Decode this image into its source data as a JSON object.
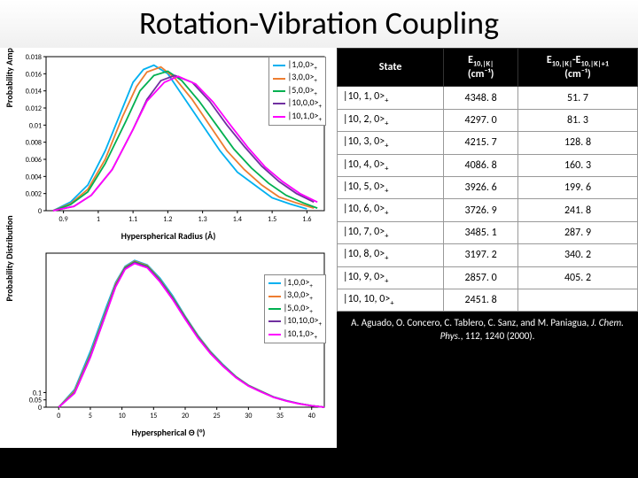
{
  "title": "Rotation-Vibration Coupling",
  "chart_top": {
    "ylabel": "Probability Amplitude",
    "xlabel": "Hyperspherical Radius (Å)",
    "xlim": [
      0.85,
      1.65
    ],
    "ylim": [
      0,
      0.018
    ],
    "xticks": [
      0.9,
      1.0,
      1.1,
      1.2,
      1.3,
      1.4,
      1.5,
      1.6
    ],
    "yticks": [
      0,
      0.002,
      0.004,
      0.006,
      0.008,
      0.01,
      0.012,
      0.014,
      0.016,
      0.018
    ],
    "background_color": "#ffffff",
    "grid_color": "#cccccc",
    "line_width": 1.8,
    "legend_pos": "top-right",
    "series": [
      {
        "label": "|1,0,0>",
        "sub": "+",
        "color": "#00b0f0",
        "points": [
          [
            0.87,
            0
          ],
          [
            0.92,
            0.001
          ],
          [
            0.97,
            0.003
          ],
          [
            1.02,
            0.007
          ],
          [
            1.07,
            0.012
          ],
          [
            1.1,
            0.015
          ],
          [
            1.13,
            0.0165
          ],
          [
            1.16,
            0.017
          ],
          [
            1.2,
            0.016
          ],
          [
            1.25,
            0.013
          ],
          [
            1.3,
            0.01
          ],
          [
            1.35,
            0.007
          ],
          [
            1.4,
            0.0045
          ],
          [
            1.45,
            0.003
          ],
          [
            1.5,
            0.0015
          ],
          [
            1.55,
            0.0008
          ],
          [
            1.6,
            0.0002
          ]
        ]
      },
      {
        "label": "|3,0,0>",
        "sub": "+",
        "color": "#ed7d31",
        "points": [
          [
            0.87,
            0
          ],
          [
            0.92,
            0.0008
          ],
          [
            0.97,
            0.0025
          ],
          [
            1.02,
            0.006
          ],
          [
            1.07,
            0.011
          ],
          [
            1.11,
            0.0145
          ],
          [
            1.14,
            0.0162
          ],
          [
            1.18,
            0.0168
          ],
          [
            1.22,
            0.0155
          ],
          [
            1.27,
            0.013
          ],
          [
            1.32,
            0.01
          ],
          [
            1.37,
            0.007
          ],
          [
            1.42,
            0.0048
          ],
          [
            1.47,
            0.003
          ],
          [
            1.52,
            0.0016
          ],
          [
            1.57,
            0.0009
          ],
          [
            1.62,
            0.0003
          ]
        ]
      },
      {
        "label": "|5,0,0>",
        "sub": "+",
        "color": "#00b050",
        "points": [
          [
            0.87,
            0
          ],
          [
            0.92,
            0.0007
          ],
          [
            0.97,
            0.0022
          ],
          [
            1.02,
            0.0055
          ],
          [
            1.08,
            0.0105
          ],
          [
            1.12,
            0.014
          ],
          [
            1.16,
            0.0158
          ],
          [
            1.2,
            0.0163
          ],
          [
            1.24,
            0.0152
          ],
          [
            1.29,
            0.0128
          ],
          [
            1.34,
            0.01
          ],
          [
            1.39,
            0.0072
          ],
          [
            1.44,
            0.005
          ],
          [
            1.49,
            0.0032
          ],
          [
            1.54,
            0.0018
          ],
          [
            1.59,
            0.0009
          ],
          [
            1.63,
            0.0003
          ]
        ]
      },
      {
        "label": "|10,0,0>",
        "sub": "+",
        "color": "#7030a0",
        "points": [
          [
            0.87,
            0
          ],
          [
            0.93,
            0.0005
          ],
          [
            0.98,
            0.0018
          ],
          [
            1.04,
            0.0048
          ],
          [
            1.1,
            0.0095
          ],
          [
            1.14,
            0.013
          ],
          [
            1.18,
            0.0152
          ],
          [
            1.22,
            0.0158
          ],
          [
            1.27,
            0.015
          ],
          [
            1.32,
            0.0128
          ],
          [
            1.37,
            0.01
          ],
          [
            1.42,
            0.0075
          ],
          [
            1.47,
            0.0052
          ],
          [
            1.52,
            0.0034
          ],
          [
            1.57,
            0.002
          ],
          [
            1.62,
            0.001
          ]
        ]
      },
      {
        "label": "|10,1,0>",
        "sub": "+",
        "color": "#ff00ff",
        "points": [
          [
            0.87,
            0
          ],
          [
            0.93,
            0.0005
          ],
          [
            0.98,
            0.0018
          ],
          [
            1.04,
            0.0048
          ],
          [
            1.1,
            0.0095
          ],
          [
            1.14,
            0.0128
          ],
          [
            1.19,
            0.015
          ],
          [
            1.23,
            0.0157
          ],
          [
            1.28,
            0.0148
          ],
          [
            1.33,
            0.0127
          ],
          [
            1.38,
            0.01
          ],
          [
            1.43,
            0.0074
          ],
          [
            1.48,
            0.0051
          ],
          [
            1.53,
            0.0034
          ],
          [
            1.58,
            0.002
          ],
          [
            1.63,
            0.001
          ]
        ]
      }
    ]
  },
  "chart_bottom": {
    "ylabel": "Probability Distribution",
    "xlabel": "Hyperspherical Θ (°)",
    "xlim": [
      -2,
      42
    ],
    "ylim": [
      0,
      1.05
    ],
    "xticks": [
      0,
      5,
      10,
      15,
      20,
      25,
      30,
      35,
      40
    ],
    "yticks": [
      0.0,
      0.05,
      0.1
    ],
    "ytick_labels": [
      "0",
      "0.05",
      "0.1"
    ],
    "background_color": "#ffffff",
    "line_width": 1.8,
    "legend_pos": "right-upper",
    "series": [
      {
        "label": "|1,0,0>",
        "sub": "+",
        "color": "#00b0f0",
        "points": [
          [
            0,
            0
          ],
          [
            2.5,
            0.12
          ],
          [
            5,
            0.38
          ],
          [
            7.5,
            0.68
          ],
          [
            9,
            0.85
          ],
          [
            10.5,
            0.96
          ],
          [
            12,
            1.0
          ],
          [
            14,
            0.97
          ],
          [
            16,
            0.88
          ],
          [
            18,
            0.76
          ],
          [
            20,
            0.62
          ],
          [
            22,
            0.49
          ],
          [
            24,
            0.38
          ],
          [
            26,
            0.29
          ],
          [
            28,
            0.21
          ],
          [
            30,
            0.15
          ],
          [
            32,
            0.11
          ],
          [
            34,
            0.07
          ],
          [
            36,
            0.045
          ],
          [
            38,
            0.025
          ],
          [
            40,
            0.01
          ],
          [
            42,
            0
          ]
        ]
      },
      {
        "label": "|3,0,0>",
        "sub": "+",
        "color": "#ed7d31",
        "points": [
          [
            0,
            0
          ],
          [
            2.5,
            0.11
          ],
          [
            5,
            0.36
          ],
          [
            7.5,
            0.66
          ],
          [
            9,
            0.84
          ],
          [
            10.5,
            0.955
          ],
          [
            12,
            0.995
          ],
          [
            14,
            0.965
          ],
          [
            16,
            0.87
          ],
          [
            18,
            0.75
          ],
          [
            20,
            0.615
          ],
          [
            22,
            0.485
          ],
          [
            24,
            0.375
          ],
          [
            26,
            0.285
          ],
          [
            28,
            0.208
          ],
          [
            30,
            0.148
          ],
          [
            32,
            0.108
          ],
          [
            34,
            0.069
          ],
          [
            36,
            0.044
          ],
          [
            38,
            0.024
          ],
          [
            40,
            0.01
          ],
          [
            42,
            0
          ]
        ]
      },
      {
        "label": "|5,0,0>",
        "sub": "+",
        "color": "#00b050",
        "points": [
          [
            0,
            0
          ],
          [
            2.5,
            0.1
          ],
          [
            5,
            0.35
          ],
          [
            7.5,
            0.65
          ],
          [
            9,
            0.83
          ],
          [
            10.5,
            0.95
          ],
          [
            12,
            0.99
          ],
          [
            14,
            0.96
          ],
          [
            16,
            0.865
          ],
          [
            18,
            0.745
          ],
          [
            20,
            0.61
          ],
          [
            22,
            0.48
          ],
          [
            24,
            0.37
          ],
          [
            26,
            0.282
          ],
          [
            28,
            0.206
          ],
          [
            30,
            0.146
          ],
          [
            32,
            0.106
          ],
          [
            34,
            0.068
          ],
          [
            36,
            0.043
          ],
          [
            38,
            0.024
          ],
          [
            40,
            0.01
          ],
          [
            42,
            0
          ]
        ]
      },
      {
        "label": "|10,10,0>",
        "sub": "+",
        "color": "#7030a0",
        "points": [
          [
            0,
            0
          ],
          [
            2.5,
            0.095
          ],
          [
            5,
            0.34
          ],
          [
            7.5,
            0.64
          ],
          [
            9,
            0.825
          ],
          [
            10.5,
            0.945
          ],
          [
            12,
            0.985
          ],
          [
            14,
            0.955
          ],
          [
            16,
            0.86
          ],
          [
            18,
            0.74
          ],
          [
            20,
            0.605
          ],
          [
            22,
            0.476
          ],
          [
            24,
            0.367
          ],
          [
            26,
            0.28
          ],
          [
            28,
            0.204
          ],
          [
            30,
            0.145
          ],
          [
            32,
            0.105
          ],
          [
            34,
            0.067
          ],
          [
            36,
            0.043
          ],
          [
            38,
            0.024
          ],
          [
            40,
            0.01
          ],
          [
            42,
            0
          ]
        ]
      },
      {
        "label": "|10,1,0>",
        "sub": "+",
        "color": "#ff00ff",
        "points": [
          [
            0,
            0
          ],
          [
            2.5,
            0.095
          ],
          [
            5,
            0.34
          ],
          [
            7.5,
            0.64
          ],
          [
            9,
            0.82
          ],
          [
            10.5,
            0.94
          ],
          [
            12,
            0.98
          ],
          [
            14,
            0.95
          ],
          [
            16,
            0.855
          ],
          [
            18,
            0.735
          ],
          [
            20,
            0.6
          ],
          [
            22,
            0.472
          ],
          [
            24,
            0.365
          ],
          [
            26,
            0.278
          ],
          [
            28,
            0.202
          ],
          [
            30,
            0.144
          ],
          [
            32,
            0.104
          ],
          [
            34,
            0.067
          ],
          [
            36,
            0.042
          ],
          [
            38,
            0.023
          ],
          [
            40,
            0.01
          ],
          [
            42,
            0
          ]
        ]
      }
    ]
  },
  "table": {
    "headers": {
      "c1": "State",
      "c2_main": "E",
      "c2_sub": "10,|K|",
      "c2_unit": "(cm⁻¹)",
      "c3_main1": "E",
      "c3_sub1": "10,|K|",
      "c3_mid": "-E",
      "c3_sub2": "10,|K|+1",
      "c3_unit": "(cm⁻¹)"
    },
    "rows": [
      {
        "state": "|10, 1, 0>",
        "sub": "+",
        "e1": "4348. 8",
        "e2": "51. 7"
      },
      {
        "state": "|10, 2, 0>",
        "sub": "+",
        "e1": "4297. 0",
        "e2": "81. 3"
      },
      {
        "state": "|10, 3, 0>",
        "sub": "+",
        "e1": "4215. 7",
        "e2": "128. 8"
      },
      {
        "state": "|10, 4, 0>",
        "sub": "+",
        "e1": "4086. 8",
        "e2": "160. 3"
      },
      {
        "state": "|10, 5, 0>",
        "sub": "+",
        "e1": "3926. 6",
        "e2": "199. 6"
      },
      {
        "state": "|10, 6, 0>",
        "sub": "+",
        "e1": "3726. 9",
        "e2": "241. 8"
      },
      {
        "state": "|10, 7, 0>",
        "sub": "+",
        "e1": "3485. 1",
        "e2": "287. 9"
      },
      {
        "state": "|10, 8, 0>",
        "sub": "+",
        "e1": "3197. 2",
        "e2": "340. 2"
      },
      {
        "state": "|10, 9, 0>",
        "sub": "+",
        "e1": "2857. 0",
        "e2": "405. 2"
      },
      {
        "state": "|10, 10, 0>",
        "sub": "+",
        "e1": "2451. 8",
        "e2": ""
      }
    ]
  },
  "citation": {
    "authors": "A. Aguado, O. Concero, C. Tablero, C. Sanz, and M. Paniagua,",
    "journal": "J. Chem. Phys.",
    "ref": ", 112, 1240 (2000)."
  },
  "overlay_plus_labels": [
    "+",
    "+",
    "+",
    "+"
  ]
}
